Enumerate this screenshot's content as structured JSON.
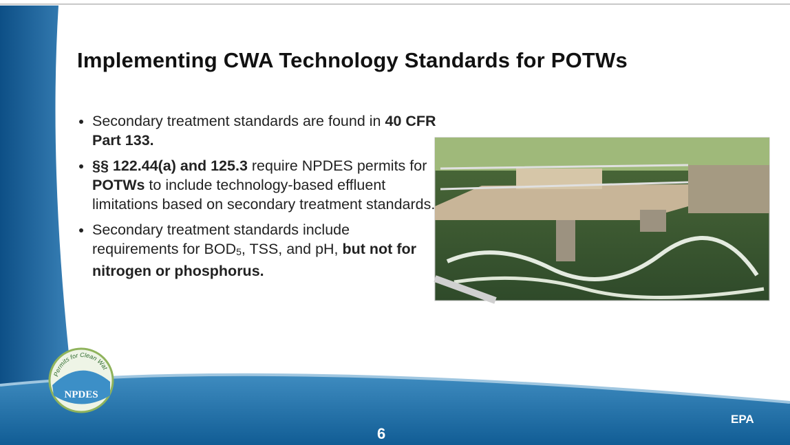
{
  "slide": {
    "title": "Implementing CWA Technology Standards for POTWs",
    "bullets": [
      {
        "runs": [
          {
            "text": "Secondary treatment standards are found in ",
            "bold": false
          },
          {
            "text": "40 CFR Part 133.",
            "bold": true
          }
        ]
      },
      {
        "runs": [
          {
            "text": "§§ 122.44(a) and 125.3",
            "bold": true
          },
          {
            "text": " require NPDES permits for ",
            "bold": false
          },
          {
            "text": "POTWs",
            "bold": true
          },
          {
            "text": " to include technology-based effluent limitations based on secondary treatment standards.",
            "bold": false
          }
        ]
      },
      {
        "runs": [
          {
            "text": "Secondary treatment standards include requirements for BOD",
            "bold": false
          },
          {
            "text": "5",
            "bold": false,
            "sub": true
          },
          {
            "text": ", TSS, and pH, ",
            "bold": false
          },
          {
            "text": "but not for nitrogen or phosphorus.",
            "bold": true
          }
        ]
      }
    ],
    "page_number": "6",
    "logo": {
      "arc_text": "Permits for Clean Water",
      "name": "NPDES"
    },
    "agency": "EPA"
  }
}
